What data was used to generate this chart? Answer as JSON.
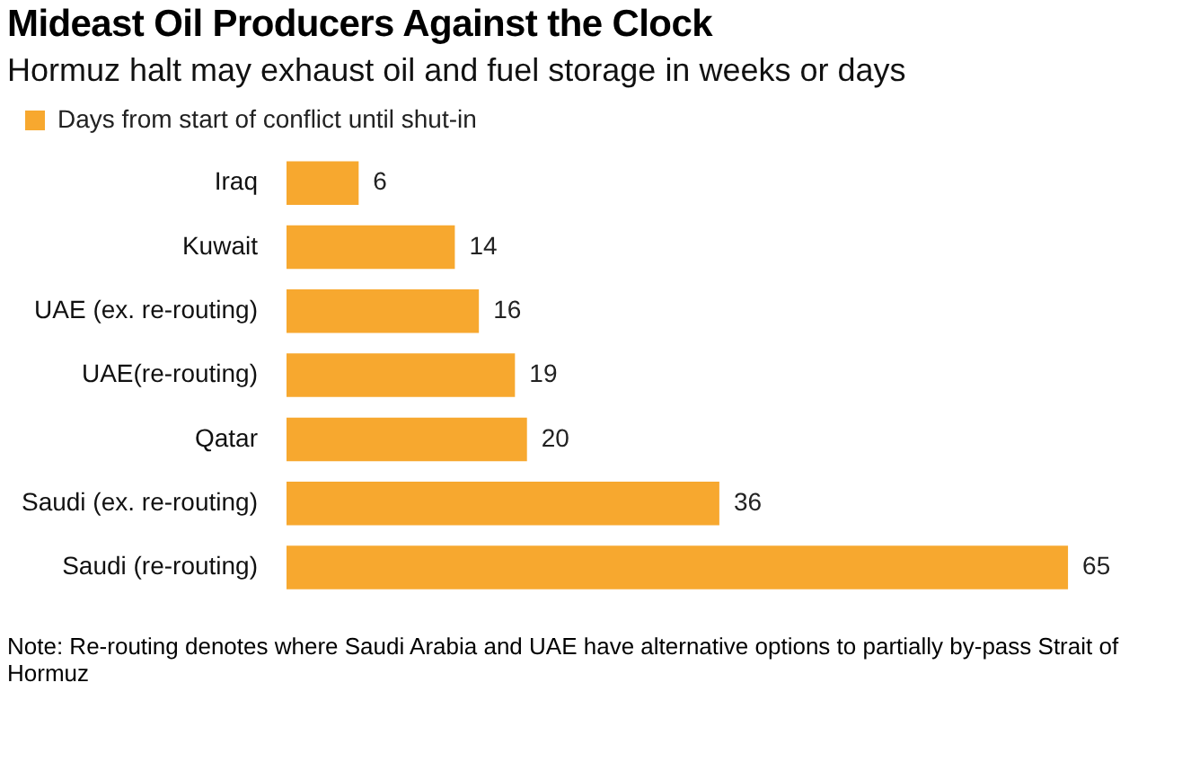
{
  "chart_data": {
    "type": "bar",
    "orientation": "horizontal",
    "title": "Mideast Oil Producers Against the Clock",
    "subtitle": "Hormuz halt may exhaust oil and fuel storage in weeks or days",
    "categories": [
      "Iraq",
      "Kuwait",
      "UAE (ex. re-routing)",
      "UAE(re-routing)",
      "Qatar",
      "Saudi (ex. re-routing)",
      "Saudi (re-routing)"
    ],
    "series": [
      {
        "name": "Days from start of conflict until shut-in",
        "color": "#f7a82f",
        "values": [
          6,
          14,
          16,
          19,
          20,
          36,
          65
        ]
      }
    ],
    "data_labels": true,
    "legend": "top left",
    "annotations": [
      "Note: Re-routing denotes where Saudi Arabia and UAE have alternative options to partially by-pass Strait of Hormuz"
    ]
  }
}
